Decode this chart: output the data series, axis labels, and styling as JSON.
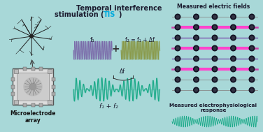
{
  "bg_color": "#a8d8d8",
  "title_color": "#1a1a2e",
  "tis_color": "#00aadd",
  "f1_label": "f₁",
  "f2_label": "f₂ = f₁ + Δf",
  "sum_label": "f₁ + f₂",
  "delta_label": "Δf",
  "wave_color_f1": "#7b6baa",
  "wave_color_f2": "#8a9a4a",
  "wave_color_sum": "#1aaa88",
  "wave_color_response": "#1aaa88",
  "measured_ef_label": "Measured electric fields",
  "measured_ep_label": "Measured electrophysiological\nresponse",
  "mea_label": "Microelectrode\narray"
}
